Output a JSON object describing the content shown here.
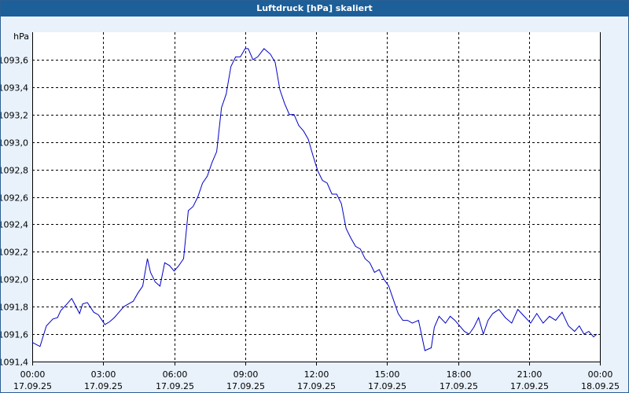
{
  "window": {
    "title": "Luftdruck [hPa] skaliert"
  },
  "colors": {
    "titlebar": "#1d5f98",
    "background": "#e9f2fb",
    "line": "#0000c8",
    "grid": "#000000"
  },
  "chart_data": {
    "type": "line",
    "title": "Luftdruck [hPa] skaliert",
    "ylabel": "hPa",
    "xlabel": "",
    "ylim": [
      1091.4,
      1093.8
    ],
    "xlim": [
      0,
      24
    ],
    "grid": true,
    "yticks": [
      {
        "value": 1091.4,
        "label": "1091,4"
      },
      {
        "value": 1091.6,
        "label": "1091,6"
      },
      {
        "value": 1091.8,
        "label": "1091,8"
      },
      {
        "value": 1092.0,
        "label": "1092,0"
      },
      {
        "value": 1092.2,
        "label": "1092,2"
      },
      {
        "value": 1092.4,
        "label": "1092,4"
      },
      {
        "value": 1092.6,
        "label": "1092,6"
      },
      {
        "value": 1092.8,
        "label": "1092,8"
      },
      {
        "value": 1093.0,
        "label": "1093,0"
      },
      {
        "value": 1093.2,
        "label": "1093,2"
      },
      {
        "value": 1093.4,
        "label": "1093,4"
      },
      {
        "value": 1093.6,
        "label": "1093,6"
      }
    ],
    "xticks": [
      {
        "value": 0,
        "time": "00:00",
        "date": "17.09.25"
      },
      {
        "value": 3,
        "time": "03:00",
        "date": "17.09.25"
      },
      {
        "value": 6,
        "time": "06:00",
        "date": "17.09.25"
      },
      {
        "value": 9,
        "time": "09:00",
        "date": "17.09.25"
      },
      {
        "value": 12,
        "time": "12:00",
        "date": "17.09.25"
      },
      {
        "value": 15,
        "time": "15:00",
        "date": "17.09.25"
      },
      {
        "value": 18,
        "time": "18:00",
        "date": "17.09.25"
      },
      {
        "value": 21,
        "time": "21:00",
        "date": "17.09.25"
      },
      {
        "value": 24,
        "time": "00:00",
        "date": "18.09.25"
      }
    ],
    "series": [
      {
        "x": [
          0.0,
          0.33,
          0.6,
          0.87,
          1.07,
          1.2,
          1.47,
          1.67,
          2.0,
          2.13,
          2.33,
          2.6,
          2.8,
          3.07,
          3.27,
          3.47,
          3.67,
          3.87,
          4.07,
          4.27,
          4.47,
          4.67,
          4.87,
          5.0,
          5.2,
          5.4,
          5.6,
          5.8,
          6.0,
          6.2,
          6.4,
          6.6,
          6.8,
          7.0,
          7.2,
          7.4,
          7.6,
          7.8,
          8.0,
          8.2,
          8.4,
          8.6,
          8.8,
          9.0,
          9.13,
          9.33,
          9.53,
          9.8,
          10.07,
          10.27,
          10.47,
          10.67,
          10.87,
          11.07,
          11.27,
          11.47,
          11.67,
          11.87,
          12.07,
          12.27,
          12.47,
          12.67,
          12.87,
          13.07,
          13.27,
          13.47,
          13.67,
          13.87,
          14.07,
          14.27,
          14.47,
          14.67,
          14.87,
          15.07,
          15.27,
          15.47,
          15.67,
          15.87,
          16.07,
          16.33,
          16.6,
          16.87,
          17.0,
          17.2,
          17.47,
          17.67,
          17.87,
          18.07,
          18.27,
          18.47,
          18.67,
          18.87,
          19.07,
          19.27,
          19.47,
          19.73,
          20.0,
          20.27,
          20.53,
          20.8,
          21.07,
          21.33,
          21.6,
          21.87,
          22.13,
          22.4,
          22.67,
          22.93,
          23.13,
          23.33,
          23.53,
          23.73,
          23.87
        ],
        "y": [
          1091.54,
          1091.51,
          1091.66,
          1091.71,
          1091.72,
          1091.77,
          1091.82,
          1091.86,
          1091.75,
          1091.82,
          1091.83,
          1091.76,
          1091.74,
          1091.67,
          1091.69,
          1091.72,
          1091.76,
          1091.8,
          1091.82,
          1091.84,
          1091.9,
          1091.95,
          1092.15,
          1092.05,
          1091.98,
          1091.95,
          1092.12,
          1092.1,
          1092.06,
          1092.1,
          1092.15,
          1092.5,
          1092.53,
          1092.6,
          1092.7,
          1092.75,
          1092.85,
          1092.93,
          1093.25,
          1093.35,
          1093.55,
          1093.62,
          1093.62,
          1093.68,
          1093.68,
          1093.6,
          1093.62,
          1093.68,
          1093.64,
          1093.58,
          1093.38,
          1093.28,
          1093.2,
          1093.2,
          1093.12,
          1093.08,
          1093.02,
          1092.9,
          1092.79,
          1092.72,
          1092.7,
          1092.62,
          1092.62,
          1092.55,
          1092.37,
          1092.3,
          1092.24,
          1092.22,
          1092.15,
          1092.12,
          1092.05,
          1092.07,
          1092.0,
          1091.95,
          1091.85,
          1091.75,
          1091.7,
          1091.7,
          1091.68,
          1091.7,
          1091.48,
          1091.5,
          1091.65,
          1091.73,
          1091.68,
          1091.73,
          1091.7,
          1091.66,
          1091.62,
          1091.6,
          1091.65,
          1091.72,
          1091.6,
          1091.7,
          1091.75,
          1091.78,
          1091.72,
          1091.68,
          1091.78,
          1091.73,
          1091.68,
          1091.75,
          1091.68,
          1091.73,
          1091.7,
          1091.76,
          1091.66,
          1091.62,
          1091.66,
          1091.6,
          1091.62,
          1091.58,
          1091.6
        ]
      }
    ]
  }
}
